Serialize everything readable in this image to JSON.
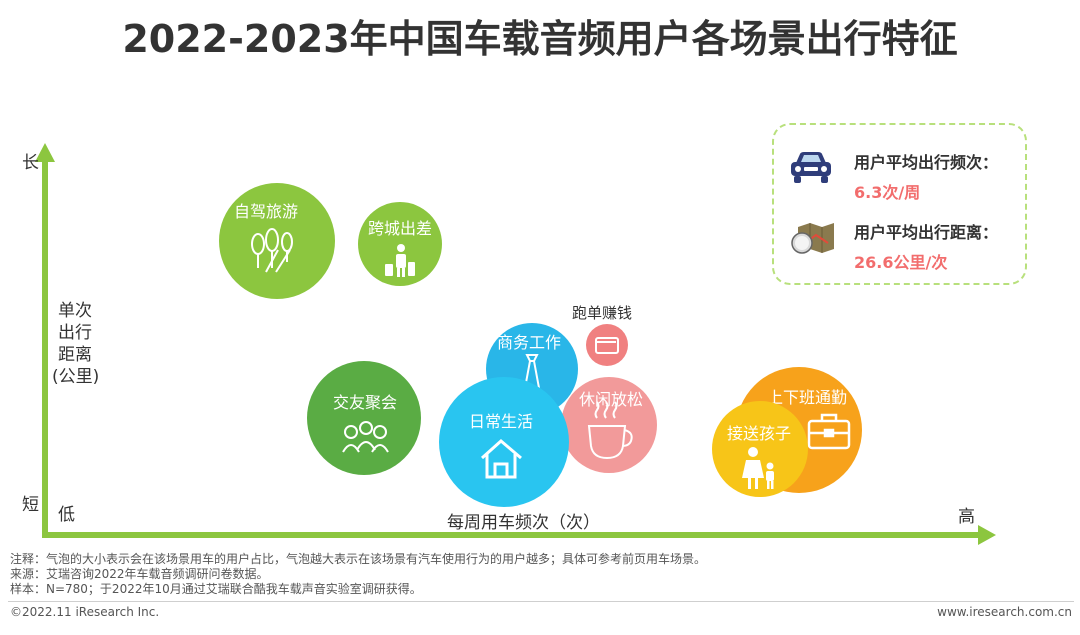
{
  "title": "2022-2023年中国车载音频用户各场景出行特征",
  "chart_data": {
    "type": "scatter",
    "title": "2022-2023年中国车载音频用户各场景出行特征",
    "xlabel": "每周用车频次（次）",
    "ylabel": [
      "单次",
      "出行",
      "距离",
      "(公里)"
    ],
    "x_low_label": "低",
    "x_high_label": "高",
    "y_high_label": "长",
    "y_low_label": "短",
    "series": [
      {
        "label": "自驾旅游",
        "color": "#8cc63f",
        "icon": "trees-road-icon"
      },
      {
        "label": "跨城出差",
        "color": "#8cc63f",
        "icon": "traveler-luggage-icon"
      },
      {
        "label": "交友聚会",
        "color": "#5aac44",
        "icon": "group-people-icon"
      },
      {
        "label": "跑单赚钱",
        "color": "#f08080",
        "icon": "wallet-icon"
      },
      {
        "label": "商务工作",
        "color": "#29b6e8",
        "icon": "necktie-icon"
      },
      {
        "label": "日常生活",
        "color": "#29c5f0",
        "icon": "house-icon"
      },
      {
        "label": "休闲放松",
        "color": "#f29a9a",
        "icon": "coffee-cup-icon"
      },
      {
        "label": "上下班通勤",
        "color": "#f7a21b",
        "icon": "briefcase-icon"
      },
      {
        "label": "接送孩子",
        "color": "#f7c518",
        "icon": "parent-child-icon"
      }
    ]
  },
  "legend": {
    "frequency_label": "用户平均出行频次：",
    "frequency_value": "6.3次/周",
    "distance_label": "用户平均出行距离：",
    "distance_value": "26.6公里/次"
  },
  "footer": {
    "note": "注释：气泡的大小表示会在该场景用车的用户占比，气泡越大表示在该场景有汽车使用行为的用户越多；具体可参考前页用车场景。",
    "source": "来源：艾瑞咨询2022年车载音频调研问卷数据。",
    "sample": "样本：N=780；于2022年10月通过艾瑞联合酷我车载声音实验室调研获得。",
    "copyright": "©2022.11 iResearch Inc.",
    "website": "www.iresearch.com.cn"
  }
}
